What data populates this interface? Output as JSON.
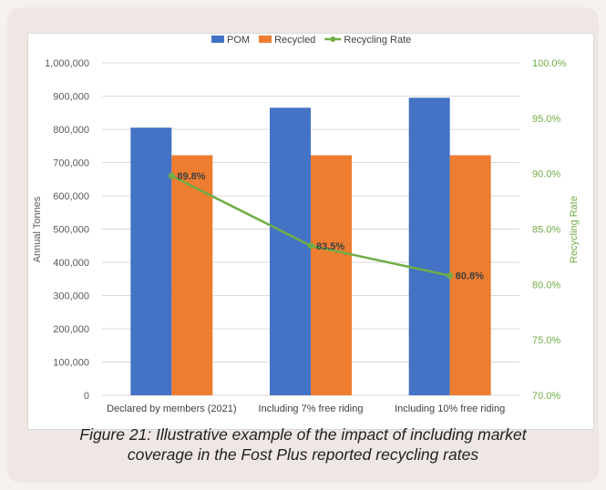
{
  "chart_data": {
    "type": "bar",
    "categories": [
      "Declared by members (2021)",
      "Including 7% free riding",
      "Including 10% free riding"
    ],
    "series": [
      {
        "name": "POM",
        "values": [
          805000,
          865000,
          895000
        ],
        "color": "#4472c4",
        "axis": "left",
        "kind": "bar"
      },
      {
        "name": "Recycled",
        "values": [
          722000,
          722000,
          722000
        ],
        "color": "#ed7d31",
        "axis": "left",
        "kind": "bar"
      },
      {
        "name": "Recycling Rate",
        "values": [
          89.8,
          83.5,
          80.8
        ],
        "data_labels": [
          "89.8%",
          "83.5%",
          "80.8%"
        ],
        "color": "#70ad47",
        "axis": "right",
        "kind": "line"
      }
    ],
    "ylabel": "Annual Tonnes",
    "y2label": "Recycling Rate",
    "ylim": [
      0,
      1000000
    ],
    "y2lim": [
      70,
      100
    ],
    "yticks": [
      "0",
      "100,000",
      "200,000",
      "300,000",
      "400,000",
      "500,000",
      "600,000",
      "700,000",
      "800,000",
      "900,000",
      "1,000,000"
    ],
    "y2ticks": [
      "70.0%",
      "75.0%",
      "80.0%",
      "85.0%",
      "90.0%",
      "95.0%",
      "100.0%"
    ],
    "legend_position": "top",
    "grid": true
  },
  "caption": {
    "line1": "Figure 21: Illustrative example of the impact of including market",
    "line2": "coverage in the Fost Plus reported recycling rates"
  }
}
